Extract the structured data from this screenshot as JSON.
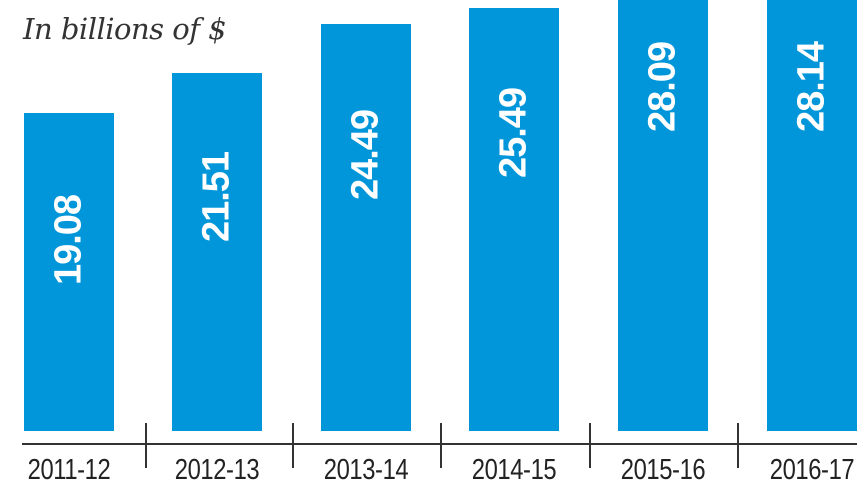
{
  "subtitle": "In billions of $",
  "colors": {
    "bar": "#0096d9",
    "label": "#ffffff",
    "axis": "#333333"
  },
  "chart_data": {
    "type": "bar",
    "title": "",
    "subtitle": "In billions of $",
    "categories": [
      "2011-12",
      "2012-13",
      "2013-14",
      "2014-15",
      "2015-16",
      "2016-17"
    ],
    "values": [
      19.08,
      21.51,
      24.49,
      25.49,
      28.09,
      28.14
    ],
    "labels": [
      "19.08",
      "21.51",
      "24.49",
      "25.49",
      "28.09",
      "28.14"
    ],
    "xlabel": "",
    "ylabel": "In billions of $",
    "grid": false,
    "legend": null
  }
}
